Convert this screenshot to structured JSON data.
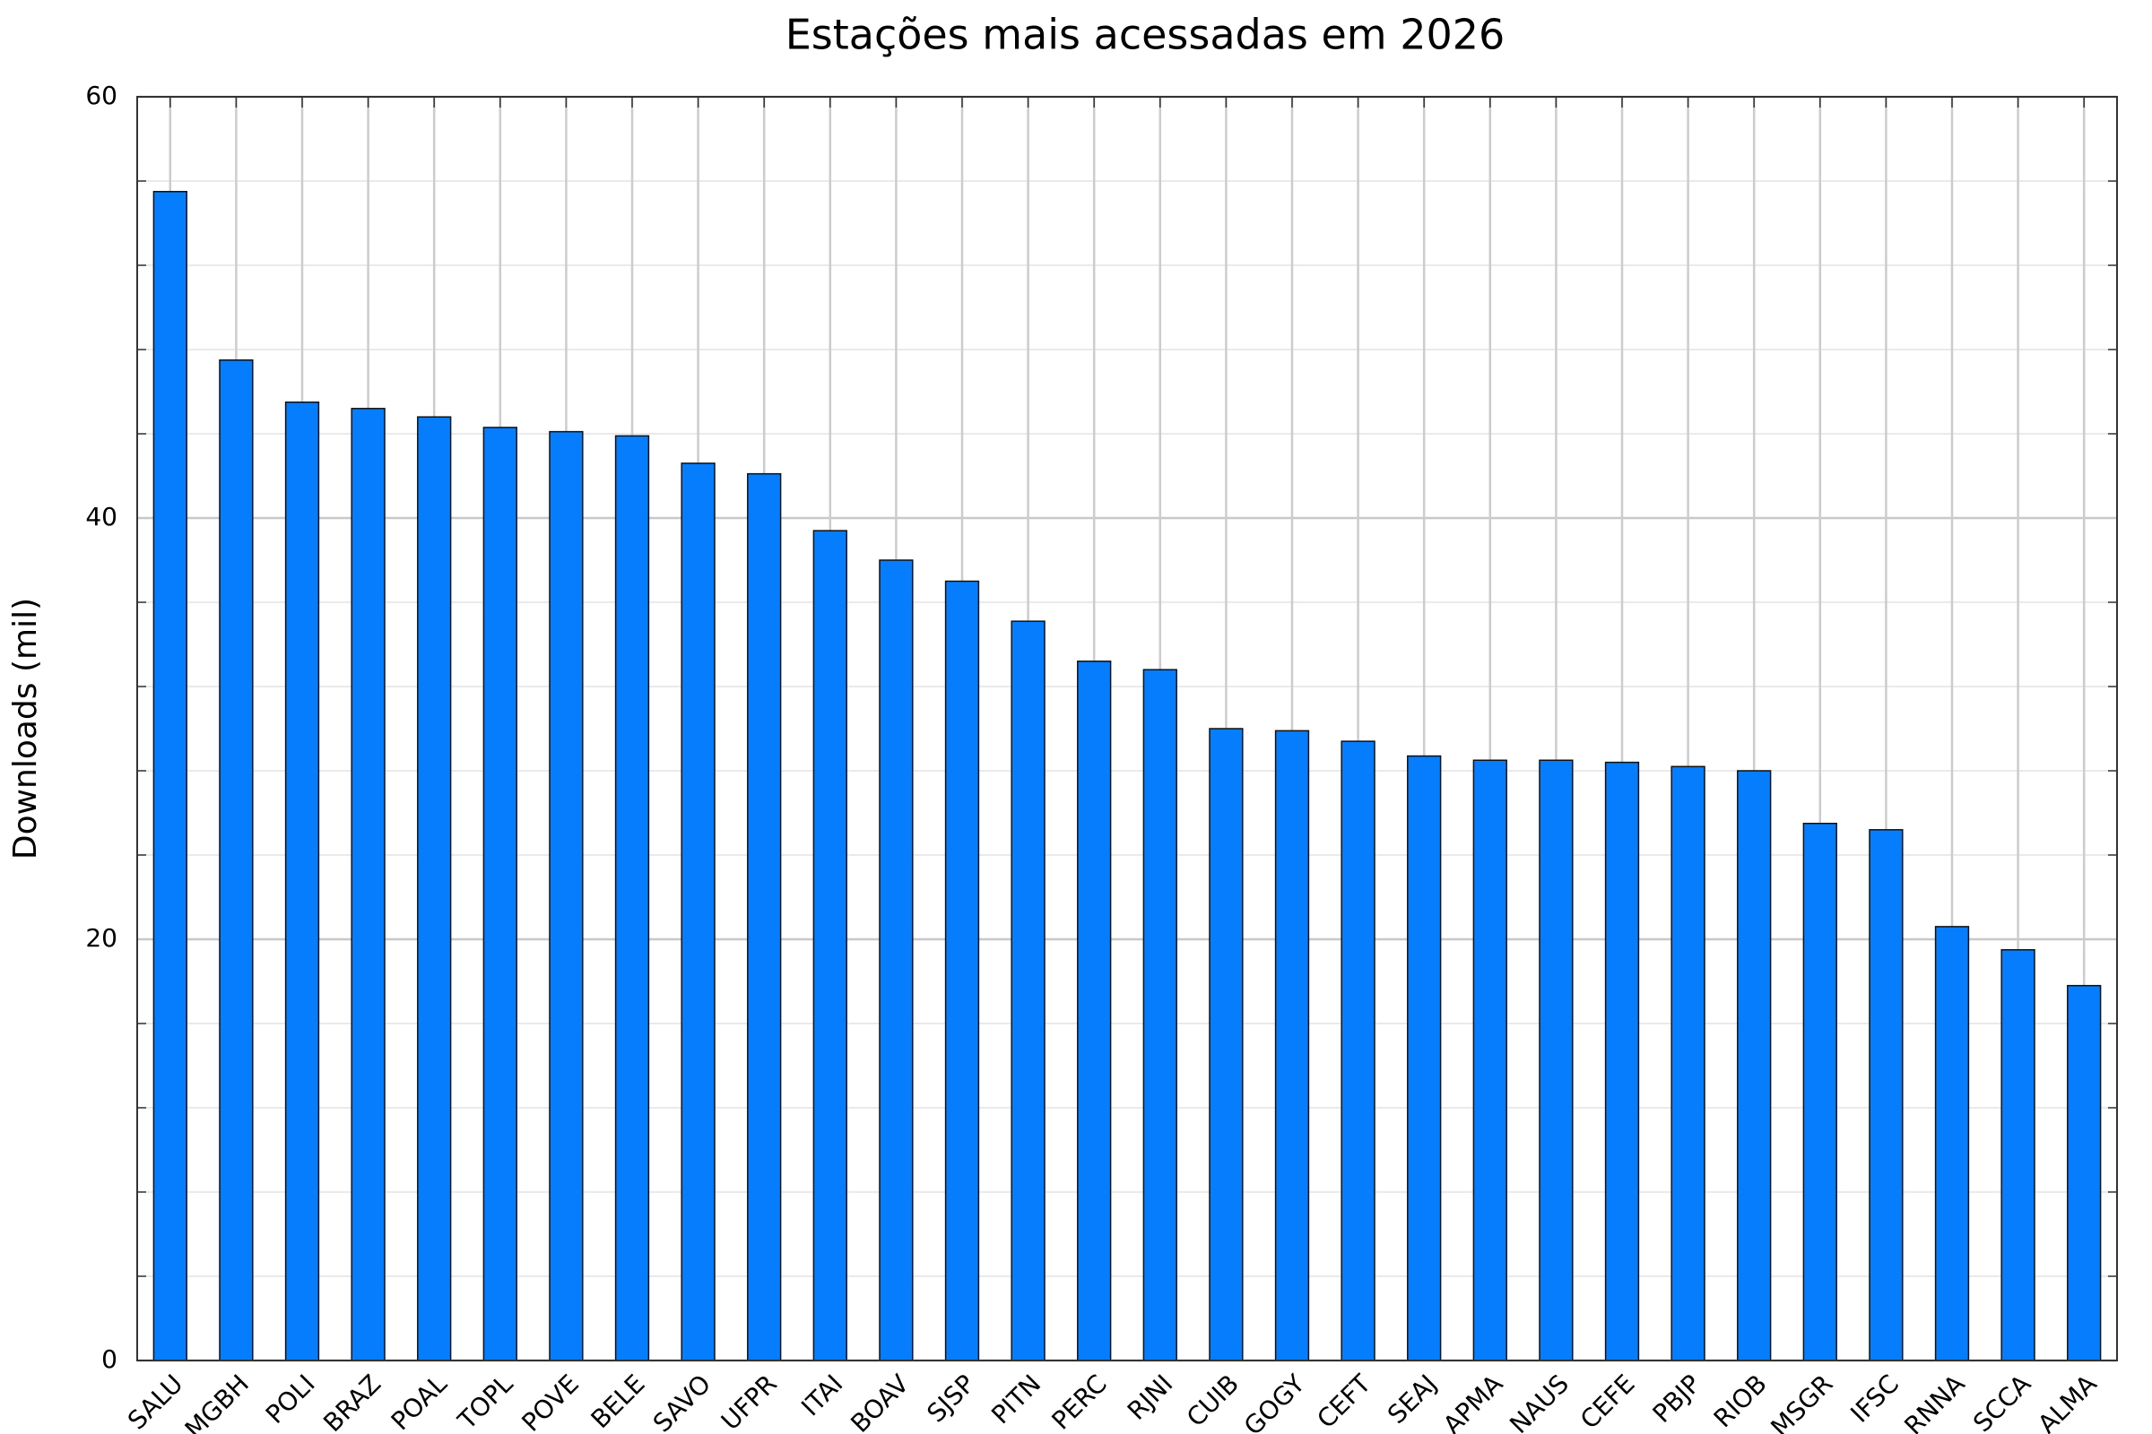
{
  "chart_data": {
    "type": "bar",
    "title": "Estações mais acessadas em 2026",
    "y_label": "Downloads (mil)",
    "categories": [
      "SALU",
      "MGBH",
      "POLI",
      "BRAZ",
      "POAL",
      "TOPL",
      "POVE",
      "BELE",
      "SAVO",
      "UFPR",
      "ITAI",
      "BOAV",
      "SJSP",
      "PITN",
      "PERC",
      "RJNI",
      "CUIB",
      "GOGY",
      "CEFT",
      "SEAJ",
      "APMA",
      "NAUS",
      "CEFE",
      "PBJP",
      "RIOB",
      "MSGR",
      "IFSC",
      "RNNA",
      "SCCA",
      "ALMA"
    ],
    "values": [
      55.5,
      47.5,
      45.5,
      45.2,
      44.8,
      44.3,
      44.1,
      43.9,
      42.6,
      42.1,
      39.4,
      38.0,
      37.0,
      35.1,
      33.2,
      32.8,
      30.0,
      29.9,
      29.4,
      28.7,
      28.5,
      28.5,
      28.4,
      28.2,
      28.0,
      25.5,
      25.2,
      20.6,
      19.5,
      17.8
    ],
    "color": "#067dfd",
    "ylim": [
      0,
      60
    ],
    "yticks": [
      0,
      20,
      40,
      60
    ],
    "grid": true
  }
}
